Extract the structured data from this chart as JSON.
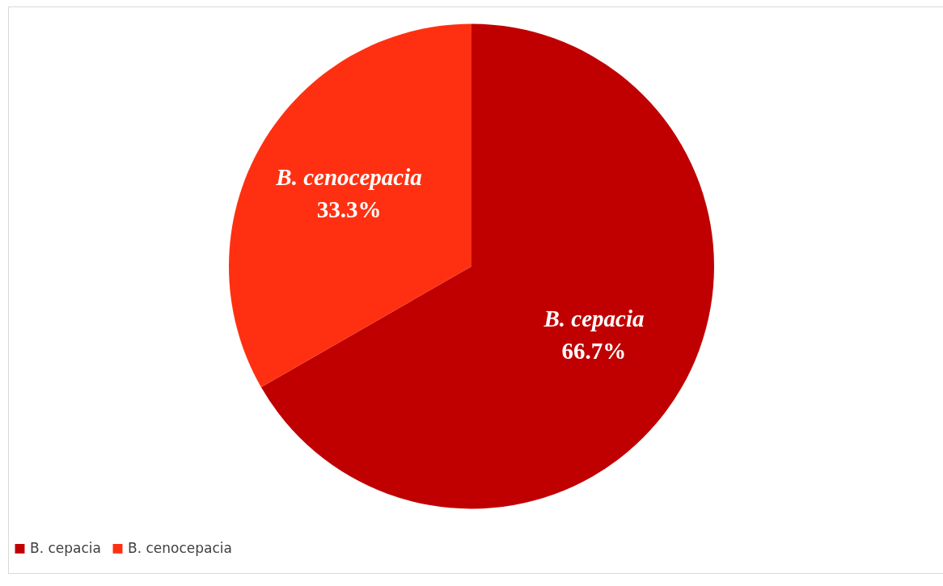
{
  "chart_data": {
    "type": "pie",
    "categories": [
      "B. cepacia",
      "B. cenocepacia"
    ],
    "values": [
      66.7,
      33.3
    ],
    "colors": [
      "#c00000",
      "#ff3011"
    ],
    "value_labels": [
      "66.7%",
      "33.3%"
    ],
    "legend": "bottom"
  }
}
